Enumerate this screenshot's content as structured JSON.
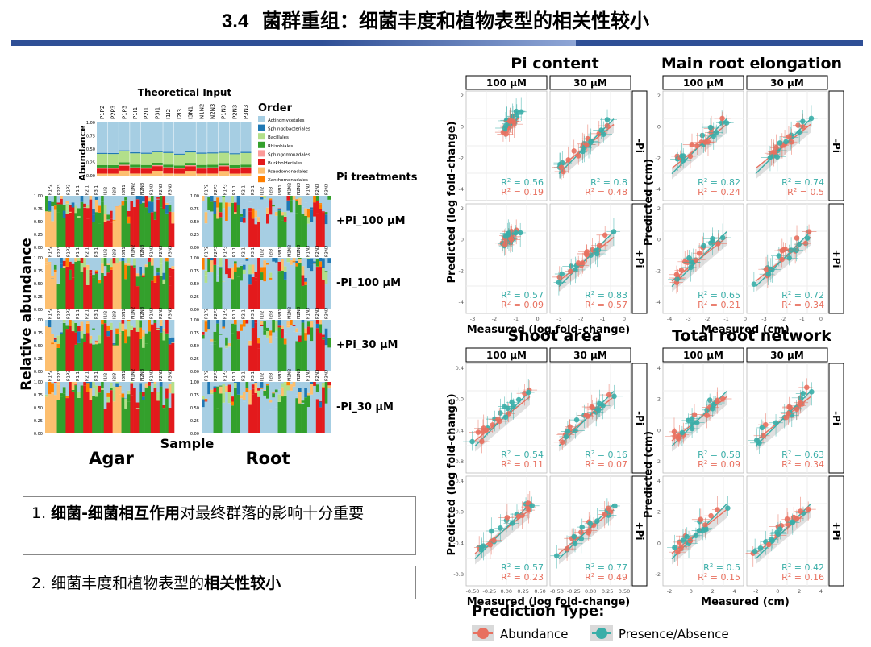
{
  "slide": {
    "title_num": "3.4",
    "title_text": "菌群重组：细菌丰度和植物表型的相关性较小",
    "bullet1_prefix": "1. ",
    "bullet1_bold": "细菌-细菌相互作用",
    "bullet1_rest": "对最终群落的影响十分重要",
    "bullet2_prefix": "2. 细菌丰度和植物表型的",
    "bullet2_bold": "相关性较小"
  },
  "left_figure": {
    "theoretical_title": "Theoretical Input",
    "abundance_label": "Abundance",
    "order_title": "Order",
    "orders": [
      {
        "name": "Actinomycetales",
        "color": "#a6cee3"
      },
      {
        "name": "Sphingobacteriales",
        "color": "#1f78b4"
      },
      {
        "name": "Bacillales",
        "color": "#b2df8a"
      },
      {
        "name": "Rhizobiales",
        "color": "#33a02c"
      },
      {
        "name": "Sphingomonadales",
        "color": "#fb9a99"
      },
      {
        "name": "Burkholderiales",
        "color": "#e31a1c"
      },
      {
        "name": "Pseudomonadales",
        "color": "#fdbf6f"
      },
      {
        "name": "Xanthomonadales",
        "color": "#ff7f00"
      }
    ],
    "pi_treatments_label": "Pi treatments",
    "treatments": [
      "+Pi_100 μM",
      "-Pi_100 μM",
      "+Pi_30 μM",
      "-Pi_30 μM"
    ],
    "y_axis_label": "Relative abundance",
    "x_axis_label": "Sample",
    "agar_label": "Agar",
    "root_label": "Root",
    "y_ticks": [
      "1.00",
      "0.75",
      "0.50",
      "0.25",
      "0.00"
    ],
    "sample_labels": [
      "P1P2",
      "P2P3",
      "P1P3",
      "P1I1",
      "P2I1",
      "P3I1",
      "I1I2",
      "I2I3",
      "I3N1",
      "N1N2",
      "N2N3",
      "P1N3",
      "P2N3",
      "P3N3"
    ]
  },
  "right_figure": {
    "panels": [
      {
        "title": "Pi content",
        "ylabel": "Predicted (log fold-change)",
        "xlabel": "Measured (log fold-change)",
        "r2": [
          [
            "0.56",
            "0.19"
          ],
          [
            "0.8",
            "0.48"
          ],
          [
            "0.57",
            "0.09"
          ],
          [
            "0.83",
            "0.57"
          ]
        ],
        "yticks": [
          "2",
          "0",
          "-2",
          "-4"
        ],
        "xticks": [
          "-3",
          "-2",
          "-1",
          "0",
          "-3",
          "-2",
          "-1",
          "0"
        ]
      },
      {
        "title": "Main root elongation",
        "ylabel": "Predicted (cm)",
        "xlabel": "Measured (cm)",
        "r2": [
          [
            "0.82",
            "0.24"
          ],
          [
            "0.74",
            "0.5"
          ],
          [
            "0.65",
            "0.21"
          ],
          [
            "0.72",
            "0.34"
          ]
        ],
        "yticks": [
          "2",
          "0",
          "-2",
          "-4"
        ],
        "xticks": [
          "-4",
          "-3",
          "-2",
          "-1",
          "0",
          "-3",
          "-2",
          "-1",
          "0"
        ]
      },
      {
        "title": "Shoot area",
        "ylabel": "Predicted (log fold-change)",
        "xlabel": "Measured (log fold-change)",
        "r2": [
          [
            "0.54",
            "0.11"
          ],
          [
            "0.16",
            "0.07"
          ],
          [
            "0.57",
            "0.23"
          ],
          [
            "0.77",
            "0.49"
          ]
        ],
        "yticks": [
          "0.4",
          "0.0",
          "-0.4",
          "-0.8"
        ],
        "xticks": [
          "-0.50",
          "-0.25",
          "0.00",
          "0.25",
          "0.50",
          "-0.50",
          "-0.25",
          "0.00",
          "0.25",
          "0.50"
        ]
      },
      {
        "title": "Total root network",
        "ylabel": "Predicted (cm)",
        "xlabel": "Measured (cm)",
        "r2": [
          [
            "0.58",
            "0.09"
          ],
          [
            "0.63",
            "0.34"
          ],
          [
            "0.5",
            "0.15"
          ],
          [
            "0.42",
            "0.16"
          ]
        ],
        "yticks": [
          "4",
          "2",
          "0",
          "-2"
        ],
        "xticks": [
          "-2",
          "0",
          "2",
          "4",
          "-2",
          "0",
          "2",
          "4"
        ]
      }
    ],
    "strip_top": [
      "100 μM",
      "30 μM"
    ],
    "strip_side": [
      "-Pi",
      "+Pi"
    ],
    "legend_title": "Prediction Type:",
    "legend_items": [
      {
        "label": "Abundance",
        "color": "#e8705f"
      },
      {
        "label": "Presence/Absence",
        "color": "#3aaea8"
      }
    ]
  }
}
